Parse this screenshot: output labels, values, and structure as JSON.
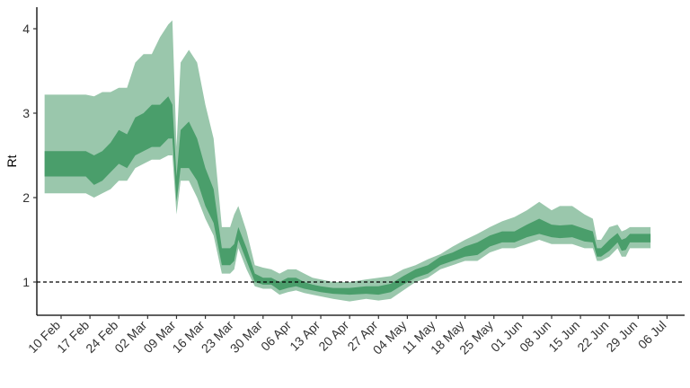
{
  "chart_data": {
    "type": "area",
    "ylabel": "Rt",
    "xlabel": "",
    "x_tick_labels": [
      "10 Feb",
      "17 Feb",
      "24 Feb",
      "02 Mar",
      "09 Mar",
      "16 Mar",
      "23 Mar",
      "30 Mar",
      "06 Apr",
      "13 Apr",
      "20 Apr",
      "27 Apr",
      "04 May",
      "11 May",
      "18 May",
      "25 May",
      "01 Jun",
      "08 Jun",
      "15 Jun",
      "22 Jun",
      "29 Jun",
      "06 Jul"
    ],
    "y_ticks": [
      1,
      2,
      3,
      4
    ],
    "ylim": [
      0.6,
      4.25
    ],
    "reference_line": {
      "y": 1,
      "style": "dashed"
    },
    "grid": false,
    "colors": {
      "outer_band": "#9ac7ac",
      "inner_band": "#4a9e6b",
      "axis": "#000000",
      "reference_line": "#000000"
    },
    "series": [
      {
        "x": [
          "02-06",
          "02-08",
          "02-10",
          "02-12",
          "02-14",
          "02-16",
          "02-18",
          "02-20",
          "02-22",
          "02-24",
          "02-26",
          "02-28",
          "03-01",
          "03-03",
          "03-05",
          "03-07",
          "03-08",
          "03-09",
          "03-10",
          "03-12",
          "03-14",
          "03-16",
          "03-18",
          "03-20",
          "03-22",
          "03-23",
          "03-24",
          "03-26",
          "03-28",
          "03-30",
          "04-01",
          "04-03",
          "04-05",
          "04-07",
          "04-09",
          "04-11",
          "04-13",
          "04-16",
          "04-20",
          "04-24",
          "04-27",
          "04-30",
          "05-03",
          "05-06",
          "05-09",
          "05-12",
          "05-15",
          "05-18",
          "05-21",
          "05-24",
          "05-27",
          "05-30",
          "06-02",
          "06-05",
          "06-08",
          "06-10",
          "06-13",
          "06-16",
          "06-18",
          "06-19",
          "06-20",
          "06-22",
          "06-24",
          "06-25",
          "06-26",
          "06-27",
          "06-29",
          "07-02"
        ],
        "lower_90": [
          2.05,
          2.05,
          2.05,
          2.05,
          2.05,
          2.05,
          2.0,
          2.05,
          2.1,
          2.2,
          2.2,
          2.35,
          2.4,
          2.45,
          2.45,
          2.5,
          2.5,
          1.8,
          2.2,
          2.2,
          2.0,
          1.75,
          1.55,
          1.1,
          1.1,
          1.15,
          1.4,
          1.15,
          0.95,
          0.92,
          0.92,
          0.85,
          0.88,
          0.9,
          0.87,
          0.85,
          0.83,
          0.8,
          0.77,
          0.8,
          0.78,
          0.8,
          0.9,
          1.0,
          1.05,
          1.15,
          1.2,
          1.25,
          1.25,
          1.35,
          1.4,
          1.4,
          1.45,
          1.5,
          1.45,
          1.45,
          1.45,
          1.4,
          1.4,
          1.25,
          1.25,
          1.3,
          1.4,
          1.3,
          1.3,
          1.4,
          1.4,
          1.4
        ],
        "lower_50": [
          2.25,
          2.25,
          2.25,
          2.25,
          2.25,
          2.25,
          2.15,
          2.2,
          2.3,
          2.4,
          2.35,
          2.5,
          2.55,
          2.6,
          2.6,
          2.7,
          2.7,
          1.95,
          2.35,
          2.35,
          2.2,
          1.9,
          1.7,
          1.2,
          1.2,
          1.25,
          1.5,
          1.25,
          1.0,
          0.97,
          0.97,
          0.9,
          0.93,
          0.95,
          0.92,
          0.9,
          0.88,
          0.86,
          0.85,
          0.86,
          0.85,
          0.88,
          0.97,
          1.05,
          1.1,
          1.2,
          1.25,
          1.3,
          1.32,
          1.42,
          1.47,
          1.47,
          1.53,
          1.57,
          1.53,
          1.52,
          1.53,
          1.48,
          1.47,
          1.3,
          1.3,
          1.37,
          1.47,
          1.37,
          1.38,
          1.47,
          1.47,
          1.47
        ],
        "upper_50": [
          2.55,
          2.55,
          2.55,
          2.55,
          2.55,
          2.55,
          2.5,
          2.55,
          2.65,
          2.8,
          2.75,
          2.95,
          3.0,
          3.1,
          3.1,
          3.2,
          3.1,
          2.25,
          2.8,
          2.9,
          2.7,
          2.35,
          2.1,
          1.4,
          1.4,
          1.45,
          1.65,
          1.4,
          1.1,
          1.05,
          1.05,
          1.0,
          1.05,
          1.05,
          1.0,
          0.97,
          0.95,
          0.93,
          0.93,
          0.95,
          0.95,
          0.98,
          1.07,
          1.15,
          1.2,
          1.3,
          1.35,
          1.42,
          1.47,
          1.55,
          1.6,
          1.6,
          1.68,
          1.75,
          1.68,
          1.67,
          1.68,
          1.63,
          1.6,
          1.4,
          1.4,
          1.5,
          1.58,
          1.5,
          1.52,
          1.57,
          1.57,
          1.57
        ],
        "upper_90": [
          3.22,
          3.22,
          3.22,
          3.22,
          3.22,
          3.22,
          3.2,
          3.25,
          3.25,
          3.3,
          3.3,
          3.6,
          3.7,
          3.7,
          3.9,
          4.05,
          4.1,
          2.6,
          3.6,
          3.75,
          3.6,
          3.1,
          2.7,
          1.65,
          1.65,
          1.8,
          1.9,
          1.6,
          1.2,
          1.17,
          1.15,
          1.1,
          1.15,
          1.15,
          1.1,
          1.05,
          1.03,
          1.0,
          1.0,
          1.03,
          1.05,
          1.07,
          1.15,
          1.2,
          1.27,
          1.33,
          1.42,
          1.5,
          1.57,
          1.65,
          1.72,
          1.77,
          1.85,
          1.95,
          1.85,
          1.9,
          1.9,
          1.8,
          1.75,
          1.5,
          1.5,
          1.65,
          1.68,
          1.6,
          1.62,
          1.65,
          1.65,
          1.65
        ]
      }
    ]
  }
}
